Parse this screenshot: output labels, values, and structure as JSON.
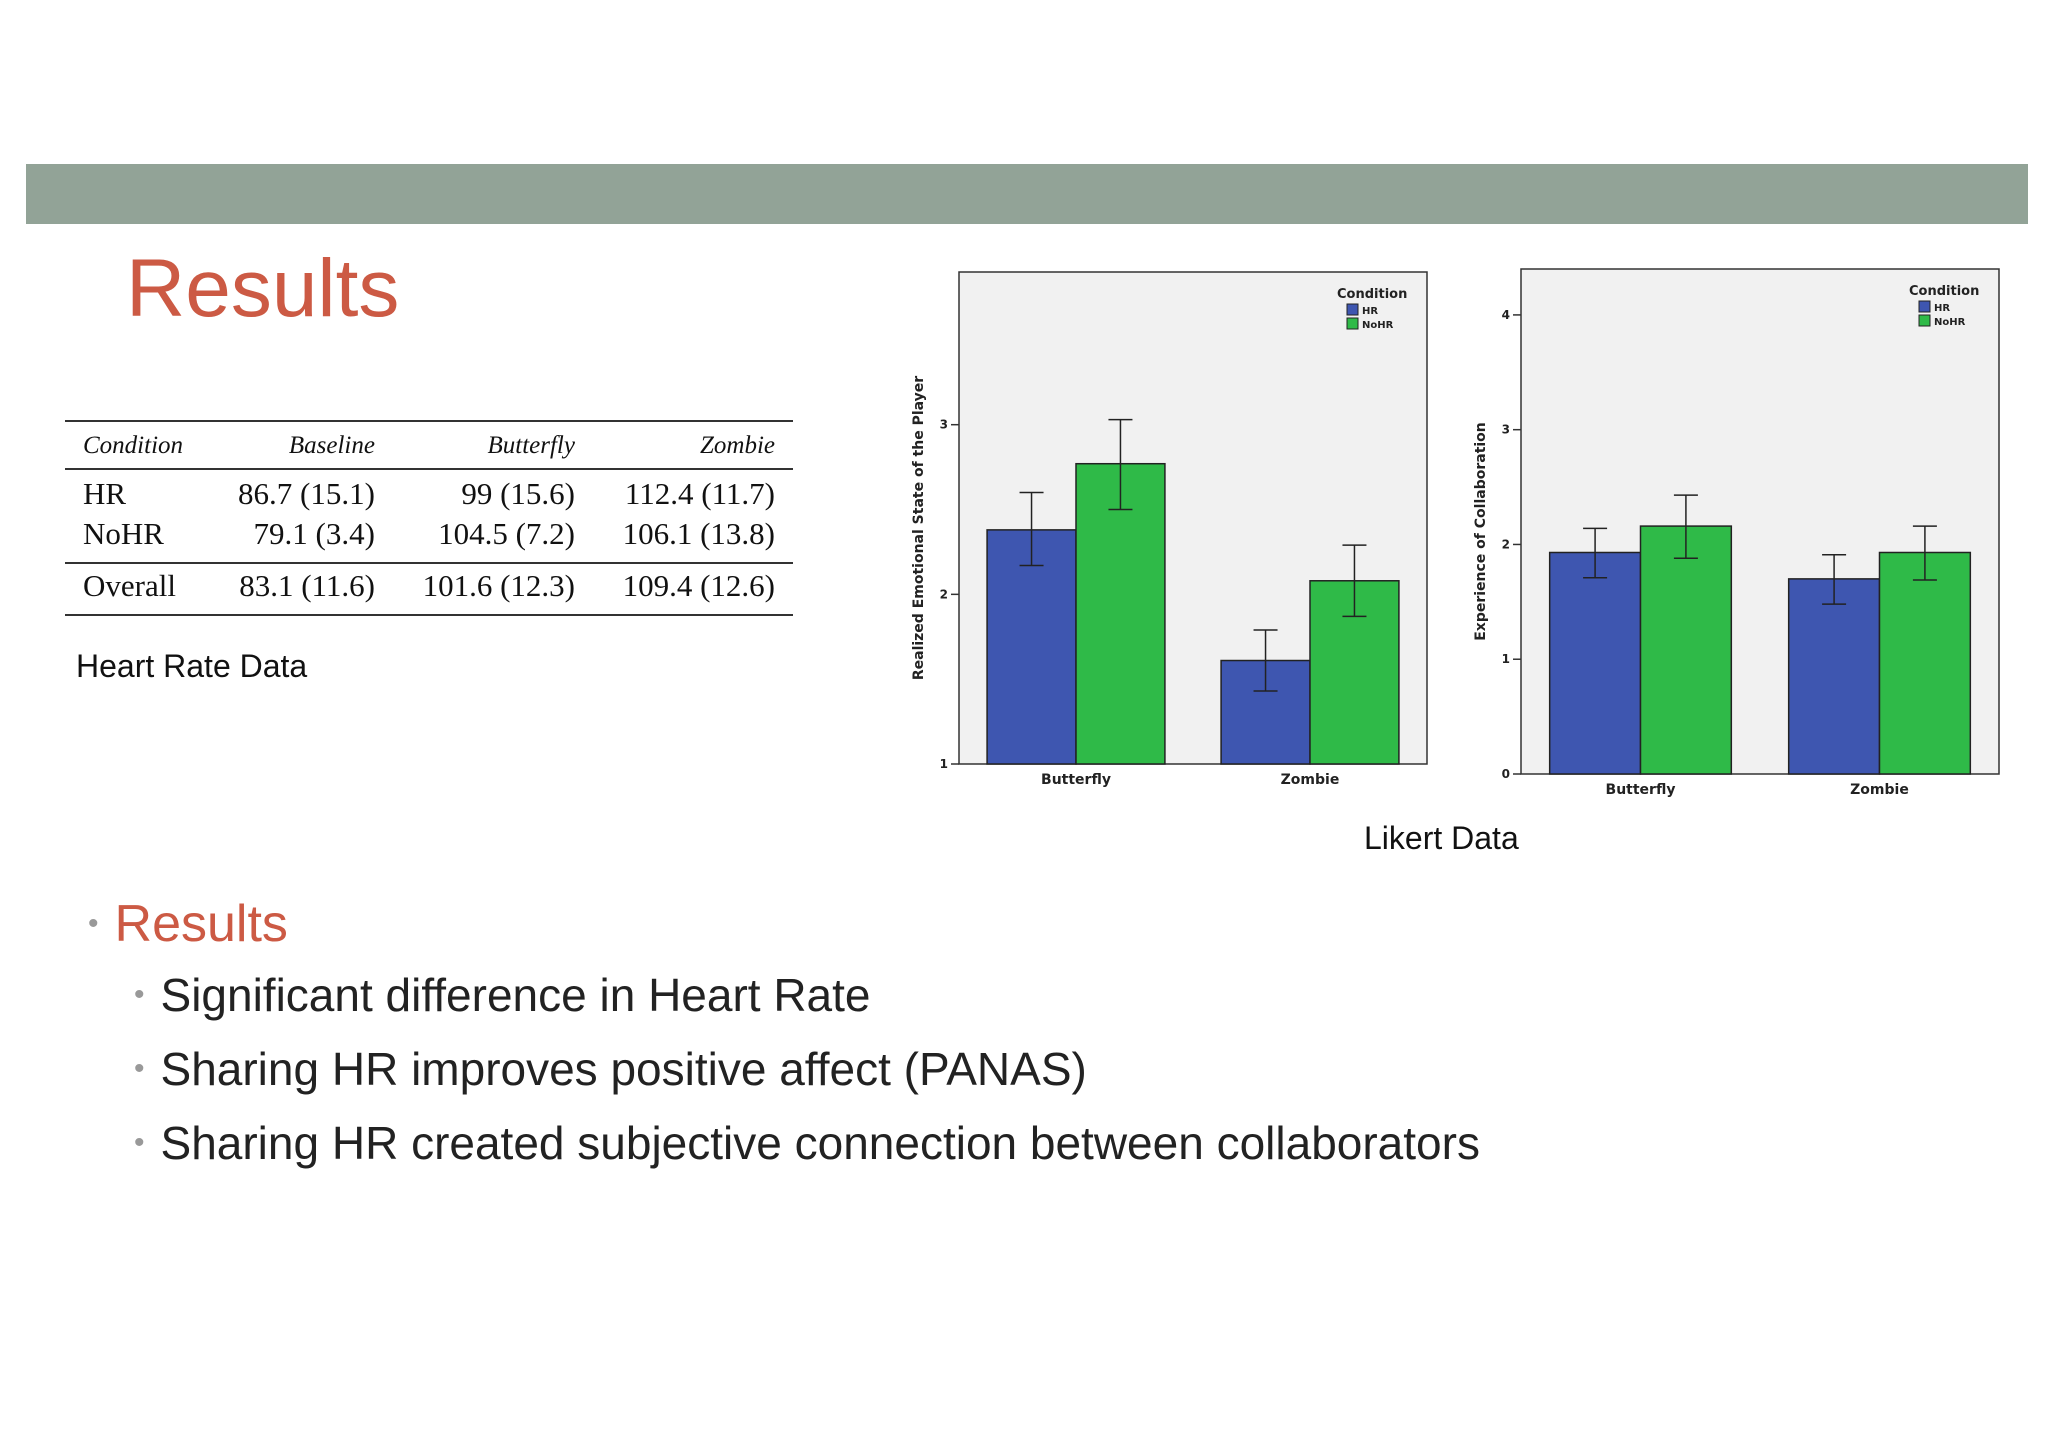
{
  "slide": {
    "title": "Results",
    "heart_rate_caption": "Heart Rate Data",
    "likert_caption": "Likert Data",
    "bullet_heading": "Results",
    "bullets": [
      "Significant difference in Heart Rate",
      "Sharing HR improves positive affect (PANAS)",
      "Sharing HR created subjective connection between collaborators"
    ]
  },
  "heart_rate_table": {
    "columns": [
      "Condition",
      "Baseline",
      "Butterfly",
      "Zombie"
    ],
    "rows": [
      [
        "HR",
        "86.7 (15.1)",
        "99 (15.6)",
        "112.4 (11.7)"
      ],
      [
        "NoHR",
        "79.1 (3.4)",
        "104.5 (7.2)",
        "106.1 (13.8)"
      ]
    ],
    "overall": [
      "Overall",
      "83.1 (11.6)",
      "101.6 (12.3)",
      "109.4 (12.6)"
    ]
  },
  "colors": {
    "hr": "#3e56b0",
    "nohr": "#2fba48",
    "plot_bg": "#f1f1f1",
    "accent": "#cc5a44"
  },
  "chart_data": [
    {
      "type": "bar",
      "ylabel": "Realized Emotional State of the Player",
      "categories": [
        "Butterfly",
        "Zombie"
      ],
      "ylim": [
        1,
        3.9
      ],
      "yticks": [
        1,
        2,
        3
      ],
      "legend_title": "Condition",
      "legend_position": "top-right",
      "series": [
        {
          "name": "HR",
          "values": [
            2.38,
            1.61
          ],
          "err_low": [
            2.17,
            1.43
          ],
          "err_high": [
            2.6,
            1.79
          ]
        },
        {
          "name": "NoHR",
          "values": [
            2.77,
            2.08
          ],
          "err_low": [
            2.5,
            1.87
          ],
          "err_high": [
            3.03,
            2.29
          ]
        }
      ]
    },
    {
      "type": "bar",
      "ylabel": "Experience of Collaboration",
      "categories": [
        "Butterfly",
        "Zombie"
      ],
      "ylim": [
        0,
        4.4
      ],
      "yticks": [
        0,
        1,
        2,
        3,
        4
      ],
      "legend_title": "Condition",
      "legend_position": "top-right",
      "series": [
        {
          "name": "HR",
          "values": [
            1.93,
            1.7
          ],
          "err_low": [
            1.71,
            1.48
          ],
          "err_high": [
            2.14,
            1.91
          ]
        },
        {
          "name": "NoHR",
          "values": [
            2.16,
            1.93
          ],
          "err_low": [
            1.88,
            1.69
          ],
          "err_high": [
            2.43,
            2.16
          ]
        }
      ]
    }
  ]
}
